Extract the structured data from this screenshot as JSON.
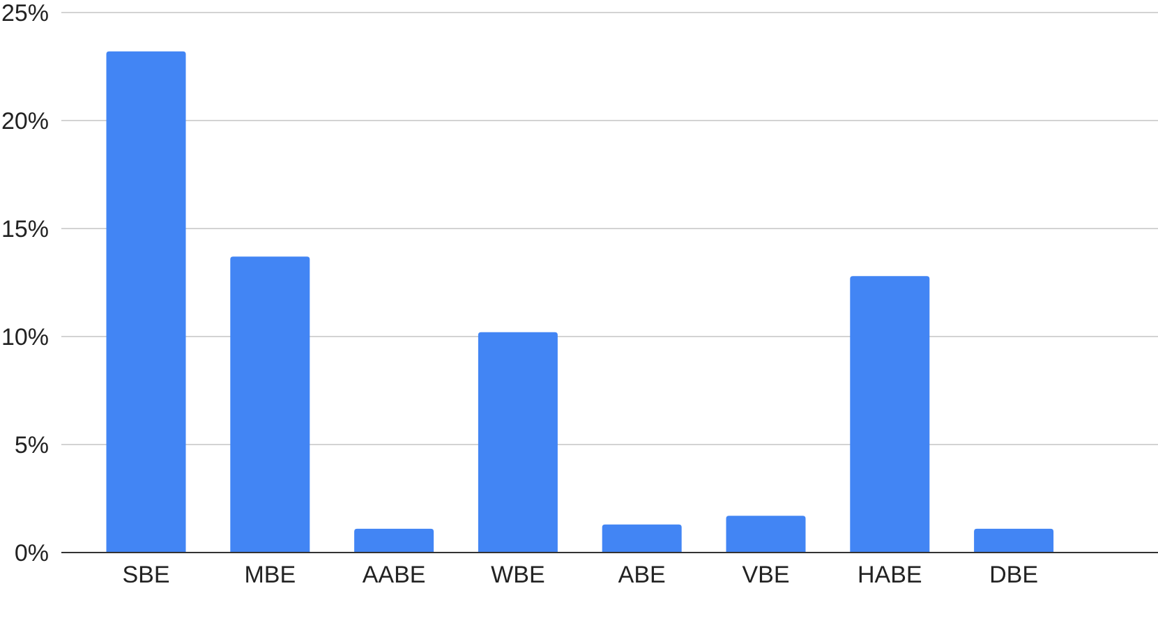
{
  "chart_data": {
    "type": "bar",
    "title": "",
    "xlabel": "",
    "ylabel": "",
    "categories": [
      "SBE",
      "MBE",
      "AABE",
      "WBE",
      "ABE",
      "VBE",
      "HABE",
      "DBE"
    ],
    "values": [
      23.2,
      13.7,
      1.1,
      10.2,
      1.3,
      1.7,
      12.8,
      1.1
    ],
    "ylim": [
      0,
      25
    ],
    "yticks": [
      0,
      5,
      10,
      15,
      20,
      25
    ],
    "ytick_labels": [
      "0%",
      "5%",
      "10%",
      "15%",
      "20%",
      "25%"
    ],
    "grid": true,
    "legend": "none",
    "colors": {
      "bar": "#4285F4",
      "grid": "#d3d3d3",
      "axis": "#333333",
      "text": "#222222"
    }
  }
}
